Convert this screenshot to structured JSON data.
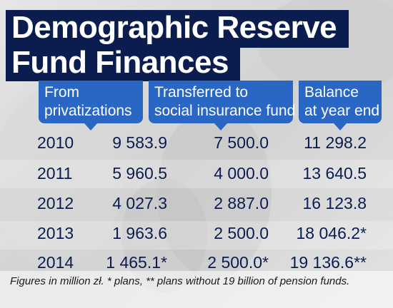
{
  "title_line1": "Demographic Reserve",
  "title_line2": "Fund Finances",
  "columns": [
    {
      "line1": "From",
      "line2": "privatizations"
    },
    {
      "line1": "Transferred to",
      "line2": "social insurance fund"
    },
    {
      "line1": "Balance",
      "line2": "at year end"
    }
  ],
  "rows": [
    {
      "year": "2010",
      "from": "9 583.9",
      "transferred": "7 500.0",
      "balance": "11 298.2"
    },
    {
      "year": "2011",
      "from": "5 960.5",
      "transferred": "4 000.0",
      "balance": "13 640.5"
    },
    {
      "year": "2012",
      "from": "4 027.3",
      "transferred": "2 887.0",
      "balance": "16 123.8"
    },
    {
      "year": "2013",
      "from": "1 963.6",
      "transferred": "2 500.0",
      "balance": "18 046.2*"
    },
    {
      "year": "2014",
      "from": "1 465.1*",
      "transferred": "2 500.0*",
      "balance": "19 136.6**"
    }
  ],
  "footnote": "Figures in million zł. * plans, ** plans without 19 billion of pension funds.",
  "colors": {
    "title_bg": "#0b1d4f",
    "header_bg": "#2a66c4",
    "value_text": "#0b1d4f"
  },
  "chart_data": {
    "type": "table",
    "title": "Demographic Reserve Fund Finances",
    "columns": [
      "",
      "From privatizations",
      "Transferred to social insurance fund",
      "Balance at year end"
    ],
    "cells": [
      [
        "2010",
        "9 583.9",
        "7 500.0",
        "11 298.2"
      ],
      [
        "2011",
        "5 960.5",
        "4 000.0",
        "13 640.5"
      ],
      [
        "2012",
        "4 027.3",
        "2 887.0",
        "16 123.8"
      ],
      [
        "2013",
        "1 963.6",
        "2 500.0",
        "18 046.2*"
      ],
      [
        "2014",
        "1 465.1*",
        "2 500.0*",
        "19 136.6**"
      ]
    ],
    "note": "Figures in million zł. * plans, ** plans without 19 billion of pension funds."
  }
}
